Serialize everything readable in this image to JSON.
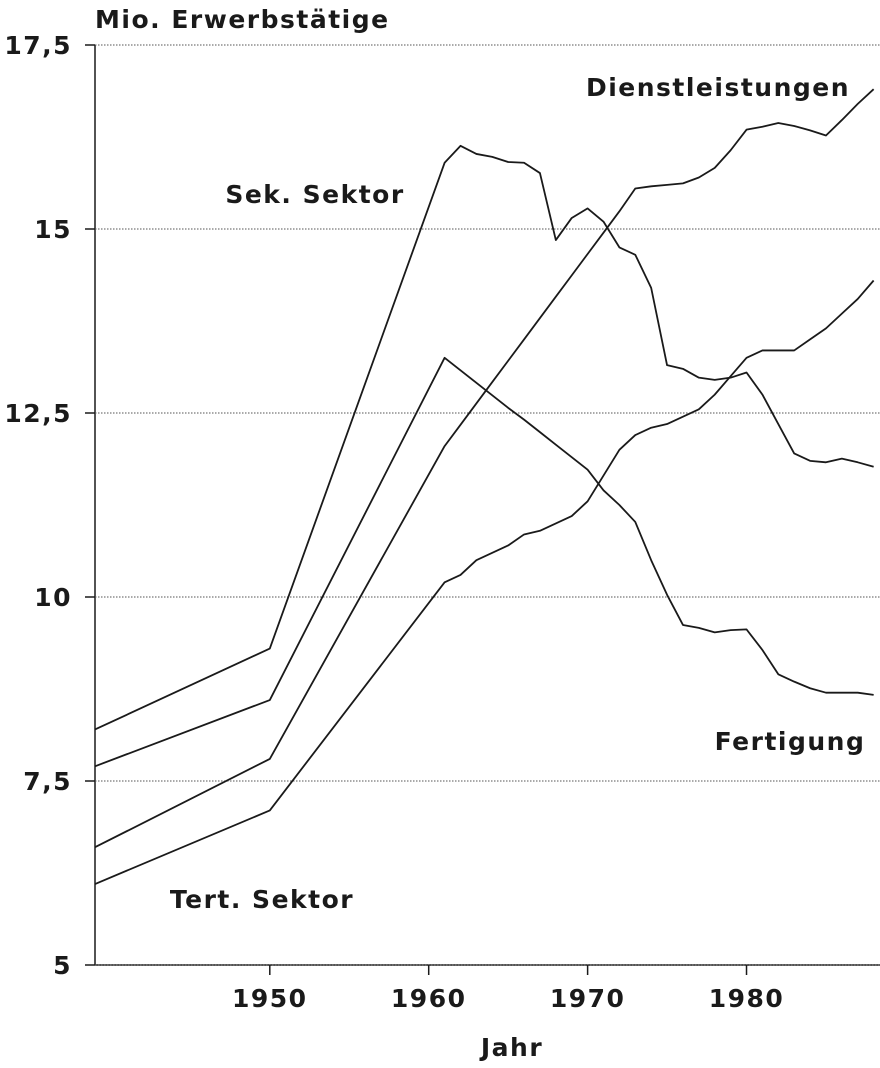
{
  "chart_data": {
    "type": "line",
    "title": "Mio. Erwerbstätige",
    "x_label": "Jahr",
    "x": [
      1939,
      1950,
      1961,
      1962,
      1963,
      1964,
      1965,
      1966,
      1967,
      1968,
      1969,
      1970,
      1971,
      1972,
      1973,
      1974,
      1975,
      1976,
      1977,
      1978,
      1979,
      1980,
      1981,
      1982,
      1983,
      1984,
      1985,
      1986,
      1987,
      1988
    ],
    "xlim": [
      1939,
      1988.4
    ],
    "xticks": [
      1950,
      1960,
      1970,
      1980
    ],
    "ylim": [
      5,
      17.5
    ],
    "yticks": [
      5,
      {
        "value": 7.5,
        "label": "7,5"
      },
      10,
      {
        "value": 12.5,
        "label": "12,5"
      },
      15,
      {
        "value": 17.5,
        "label": "17,5"
      }
    ],
    "grid": true,
    "series": [
      {
        "name": "Sek. Sektor",
        "color": "#1a1a1a",
        "values": [
          8.2,
          9.3,
          15.9,
          16.13,
          16.02,
          15.98,
          15.91,
          15.9,
          15.76,
          14.85,
          15.15,
          15.28,
          15.1,
          14.75,
          14.65,
          14.2,
          13.15,
          13.1,
          12.98,
          12.95,
          12.98,
          13.05,
          12.75,
          12.35,
          11.95,
          11.85,
          11.83,
          11.88,
          11.83,
          11.77
        ]
      },
      {
        "name": "Fertigung",
        "color": "#1a1a1a",
        "values": [
          7.7,
          8.6,
          13.25,
          13.08,
          12.91,
          12.74,
          12.57,
          12.41,
          12.24,
          12.07,
          11.9,
          11.73,
          11.45,
          11.25,
          11.02,
          10.5,
          10.03,
          9.62,
          9.58,
          9.52,
          9.55,
          9.56,
          9.28,
          8.95,
          8.85,
          8.76,
          8.7,
          8.7,
          8.7,
          8.67
        ]
      },
      {
        "name": "Dienstleistungen",
        "color": "#1a1a1a",
        "values": [
          6.6,
          7.8,
          12.05,
          12.34,
          12.63,
          12.92,
          13.21,
          13.5,
          13.79,
          14.08,
          14.37,
          14.66,
          14.95,
          15.24,
          15.55,
          15.58,
          15.6,
          15.62,
          15.7,
          15.83,
          16.07,
          16.35,
          16.39,
          16.44,
          16.4,
          16.34,
          16.27,
          16.48,
          16.7,
          16.9
        ]
      },
      {
        "name": "Tert. Sektor",
        "color": "#1a1a1a",
        "values": [
          6.1,
          7.1,
          10.2,
          10.3,
          10.5,
          10.6,
          10.7,
          10.85,
          10.9,
          11.0,
          11.1,
          11.3,
          11.65,
          12.0,
          12.2,
          12.3,
          12.35,
          12.45,
          12.55,
          12.75,
          13.0,
          13.25,
          13.35,
          13.35,
          13.35,
          13.5,
          13.65,
          13.85,
          14.05,
          14.3
        ]
      }
    ]
  }
}
